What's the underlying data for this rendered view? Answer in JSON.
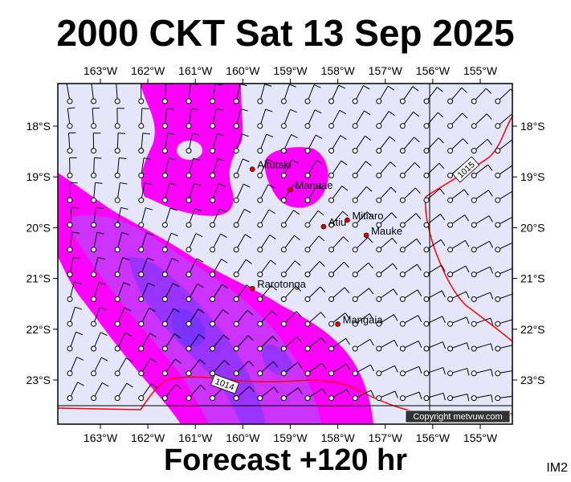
{
  "header": {
    "title": "2000 CKT Sat 13 Sep 2025"
  },
  "footer": {
    "forecast": "Forecast +120 hr",
    "code": "IM2"
  },
  "map": {
    "lon_ticks": [
      "163°W",
      "162°W",
      "161°W",
      "160°W",
      "159°W",
      "158°W",
      "157°W",
      "156°W",
      "155°W"
    ],
    "lat_ticks": [
      "18°S",
      "19°S",
      "20°S",
      "21°S",
      "22°S",
      "23°S"
    ],
    "places": [
      {
        "name": "Aitutaki",
        "lon": -159.8,
        "lat": -18.85
      },
      {
        "name": "Manuae",
        "lon": -159.0,
        "lat": -19.25
      },
      {
        "name": "Atiu",
        "lon": -158.3,
        "lat": -19.98
      },
      {
        "name": "Mitiaro",
        "lon": -157.8,
        "lat": -19.85
      },
      {
        "name": "Mauke",
        "lon": -157.4,
        "lat": -20.15
      },
      {
        "name": "Rarotonga",
        "lon": -159.8,
        "lat": -21.2
      },
      {
        "name": "Mangaia",
        "lon": -158.0,
        "lat": -21.9
      }
    ],
    "isobars": [
      {
        "label": "1015",
        "hpa": 1015
      },
      {
        "label": "1014",
        "hpa": 1014
      }
    ],
    "copyright": "Copyright metvuw.com",
    "colors": {
      "background": "#e6e6fa",
      "rain_light": "#ff00ff",
      "rain_medium": "#cc33ff",
      "rain_heavy": "#9933ff",
      "rain_veryheavy": "#7a33ff",
      "isobar": "#ff0000",
      "place_marker": "#dd0000"
    }
  }
}
